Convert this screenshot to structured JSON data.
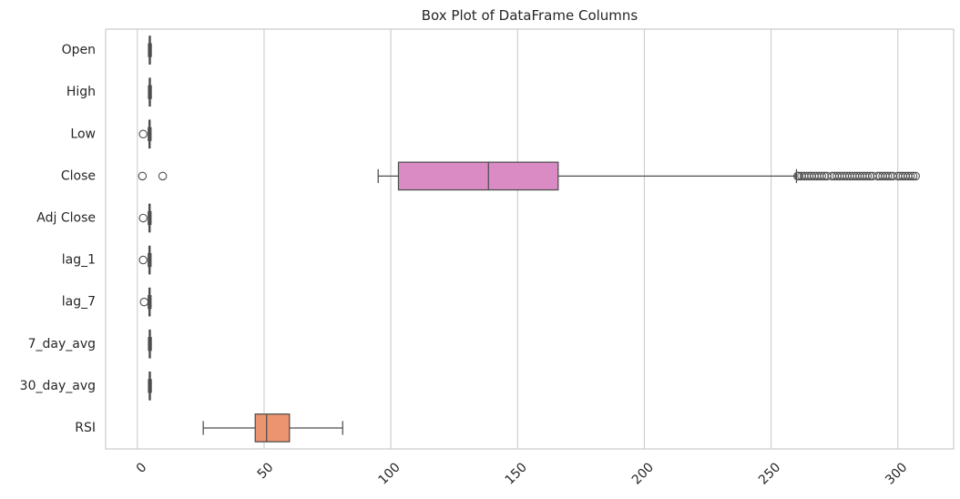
{
  "chart_data": {
    "type": "box",
    "orientation": "horizontal",
    "title": "Box Plot of DataFrame Columns",
    "xlabel": "",
    "ylabel": "",
    "xlim": [
      -12.5,
      322
    ],
    "xticks": [
      0,
      50,
      100,
      150,
      200,
      250,
      300
    ],
    "xtick_labels": [
      "0",
      "50",
      "100",
      "150",
      "200",
      "250",
      "300"
    ],
    "xtick_rotation": 45,
    "grid": "vertical",
    "categories": [
      "Open",
      "High",
      "Low",
      "Close",
      "Adj Close",
      "lag_1",
      "lag_7",
      "7_day_avg",
      "30_day_avg",
      "RSI"
    ],
    "boxes": [
      {
        "name": "Open",
        "whislo": 4.4,
        "q1": 4.7,
        "med": 4.9,
        "q3": 5.1,
        "whishi": 5.5,
        "fliers": [],
        "color": "#4c72b0"
      },
      {
        "name": "High",
        "whislo": 4.4,
        "q1": 4.7,
        "med": 4.9,
        "q3": 5.1,
        "whishi": 5.5,
        "fliers": [],
        "color": "#dd8452"
      },
      {
        "name": "Low",
        "whislo": 4.3,
        "q1": 4.6,
        "med": 4.8,
        "q3": 5.0,
        "whishi": 5.4,
        "fliers": [
          2.3
        ],
        "color": "#55a868"
      },
      {
        "name": "Close",
        "whislo": 95,
        "q1": 103,
        "med": 138.5,
        "q3": 166,
        "whishi": 260,
        "color": "#da8bc3",
        "fliers": [
          2,
          10,
          260.5,
          261,
          262,
          263,
          264,
          265,
          266,
          267,
          268,
          269,
          270,
          271,
          272,
          274,
          275,
          276,
          277,
          278,
          279,
          280,
          281,
          282,
          283,
          284,
          285,
          286,
          287,
          288,
          289,
          290,
          292,
          293,
          294,
          295,
          296,
          297,
          298,
          300,
          301,
          302,
          303,
          304,
          305,
          306,
          307
        ]
      },
      {
        "name": "Adj Close",
        "whislo": 4.3,
        "q1": 4.6,
        "med": 4.8,
        "q3": 5.0,
        "whishi": 5.4,
        "fliers": [
          2.3
        ],
        "color": "#8172b3"
      },
      {
        "name": "lag_1",
        "whislo": 4.3,
        "q1": 4.6,
        "med": 4.8,
        "q3": 5.0,
        "whishi": 5.4,
        "fliers": [
          2.3
        ],
        "color": "#937860"
      },
      {
        "name": "lag_7",
        "whislo": 4.3,
        "q1": 4.6,
        "med": 4.8,
        "q3": 5.0,
        "whishi": 5.4,
        "fliers": [
          2.7
        ],
        "color": "#da8bc3"
      },
      {
        "name": "7_day_avg",
        "whislo": 4.4,
        "q1": 4.7,
        "med": 4.9,
        "q3": 5.1,
        "whishi": 5.5,
        "fliers": [],
        "color": "#8c8c8c"
      },
      {
        "name": "30_day_avg",
        "whislo": 4.4,
        "q1": 4.7,
        "med": 4.9,
        "q3": 5.1,
        "whishi": 5.5,
        "fliers": [],
        "color": "#ccb974"
      },
      {
        "name": "RSI",
        "whislo": 26,
        "q1": 46.5,
        "med": 51,
        "q3": 60,
        "whishi": 81,
        "fliers": [],
        "color": "#ec9370"
      }
    ],
    "line_color": "#4d4d4d",
    "grid_color": "#cccccc",
    "frame_color": "#cccccc"
  }
}
